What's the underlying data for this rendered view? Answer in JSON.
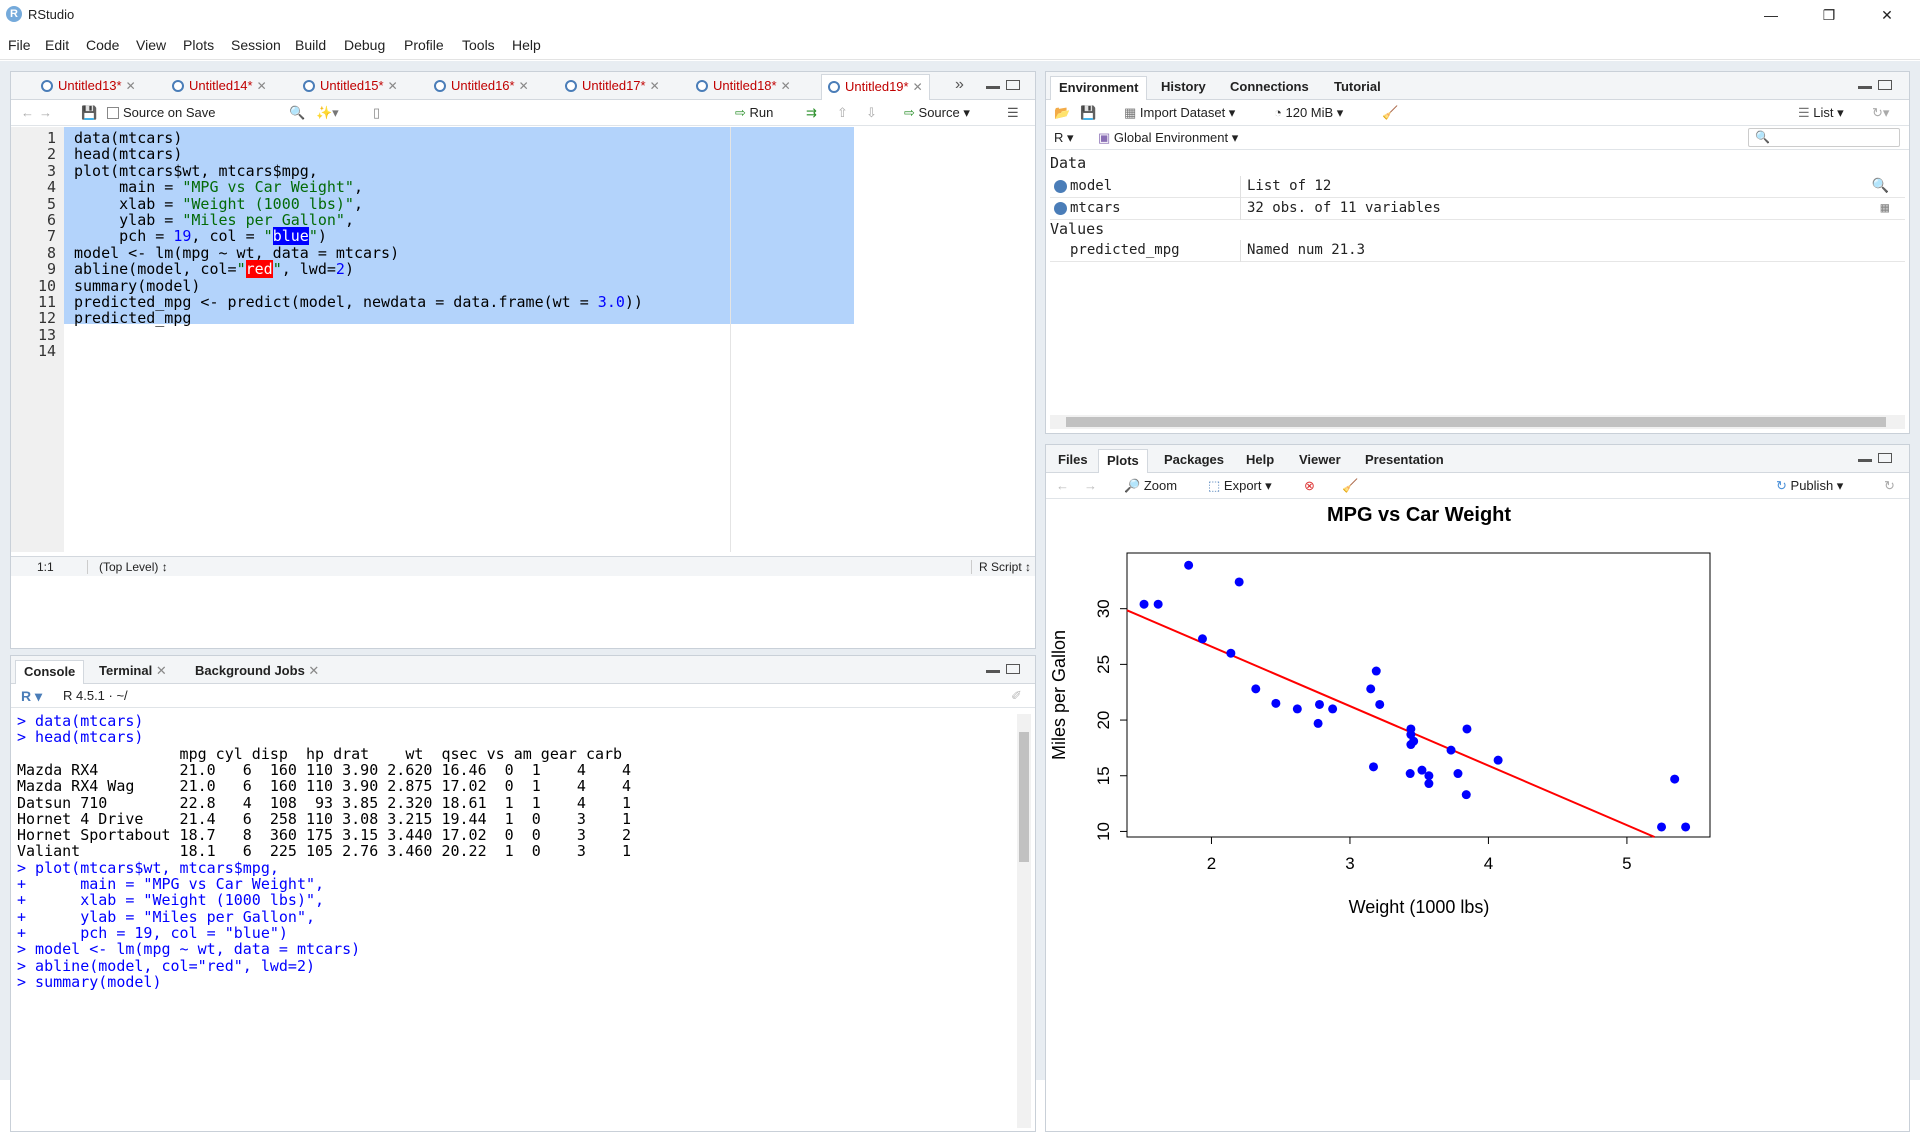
{
  "window": {
    "title": "RStudio",
    "app_icon": "R"
  },
  "menu": [
    "File",
    "Edit",
    "Code",
    "View",
    "Plots",
    "Session",
    "Build",
    "Debug",
    "Profile",
    "Tools",
    "Help"
  ],
  "editor": {
    "tabs": [
      "Untitled13*",
      "Untitled14*",
      "Untitled15*",
      "Untitled16*",
      "Untitled17*",
      "Untitled18*",
      "Untitled19*"
    ],
    "active_tab": 6,
    "toolbar": {
      "source_on_save": "Source on Save",
      "run": "Run",
      "source": "Source"
    },
    "line_numbers": [
      "1",
      "2",
      "3",
      "4",
      "5",
      "6",
      "7",
      "8",
      "9",
      "10",
      "11",
      "12",
      "13",
      "14"
    ],
    "lines": [
      "data(mtcars)",
      "head(mtcars)",
      "plot(mtcars$wt, mtcars$mpg,",
      "     main = \"MPG vs Car Weight\",",
      "     xlab = \"Weight (1000 lbs)\",",
      "     ylab = \"Miles per Gallon\",",
      "     pch = 19, col = \"blue\")",
      "model <- lm(mpg ~ wt, data = mtcars)",
      "abline(model, col=\"red\", lwd=2)",
      "summary(model)",
      "predicted_mpg <- predict(model, newdata = data.frame(wt = 3.0))",
      "predicted_mpg",
      "",
      ""
    ],
    "status": {
      "position": "1:1",
      "scope": "(Top Level)",
      "type": "R Script"
    }
  },
  "console": {
    "tabs": [
      "Console",
      "Terminal",
      "Background Jobs"
    ],
    "header": "R 4.5.1 · ~/",
    "lines": [
      "> data(mtcars)",
      "> head(mtcars)",
      "                  mpg cyl disp  hp drat    wt  qsec vs am gear carb",
      "Mazda RX4         21.0   6  160 110 3.90 2.620 16.46  0  1    4    4",
      "Mazda RX4 Wag     21.0   6  160 110 3.90 2.875 17.02  0  1    4    4",
      "Datsun 710        22.8   4  108  93 3.85 2.320 18.61  1  1    4    1",
      "Hornet 4 Drive    21.4   6  258 110 3.08 3.215 19.44  1  0    3    1",
      "Hornet Sportabout 18.7   8  360 175 3.15 3.440 17.02  0  0    3    2",
      "Valiant           18.1   6  225 105 2.76 3.460 20.22  1  0    3    1",
      "> plot(mtcars$wt, mtcars$mpg,",
      "+      main = \"MPG vs Car Weight\",",
      "+      xlab = \"Weight (1000 lbs)\",",
      "+      ylab = \"Miles per Gallon\",",
      "+      pch = 19, col = \"blue\")",
      "> model <- lm(mpg ~ wt, data = mtcars)",
      "> abline(model, col=\"red\", lwd=2)",
      "> summary(model)"
    ]
  },
  "environment": {
    "tabs": [
      "Environment",
      "History",
      "Connections",
      "Tutorial"
    ],
    "toolbar": {
      "import": "Import Dataset",
      "memory": "120 MiB",
      "view": "List",
      "lang": "R",
      "scope": "Global Environment"
    },
    "data_header": "Data",
    "values_header": "Values",
    "data_rows": [
      {
        "name": "model",
        "value": "List of  12"
      },
      {
        "name": "mtcars",
        "value": "32 obs. of 11 variables"
      }
    ],
    "value_rows": [
      {
        "name": "predicted_mpg",
        "value": "Named num 21.3"
      }
    ]
  },
  "files": {
    "tabs": [
      "Files",
      "Plots",
      "Packages",
      "Help",
      "Viewer",
      "Presentation"
    ],
    "active_tab": 1,
    "toolbar": {
      "zoom": "Zoom",
      "export": "Export",
      "publish": "Publish"
    }
  },
  "chart_data": {
    "type": "scatter",
    "title": "MPG vs Car Weight",
    "xlabel": "Weight (1000 lbs)",
    "ylabel": "Miles per Gallon",
    "xlim": [
      1.39,
      5.6
    ],
    "ylim": [
      9.5,
      35.0
    ],
    "xticks": [
      2,
      3,
      4,
      5
    ],
    "yticks": [
      10,
      15,
      20,
      25,
      30
    ],
    "point_color": "#0000ff",
    "line_color": "#ff0000",
    "regression": {
      "intercept": 37.285,
      "slope": -5.344
    },
    "x": [
      2.62,
      2.875,
      2.32,
      3.215,
      3.44,
      3.46,
      3.57,
      3.19,
      3.15,
      3.44,
      3.44,
      4.07,
      3.73,
      3.78,
      5.25,
      5.424,
      5.345,
      2.2,
      1.615,
      1.835,
      2.465,
      3.52,
      3.435,
      3.84,
      3.845,
      1.935,
      2.14,
      1.513,
      3.17,
      2.77,
      3.57,
      2.78
    ],
    "y": [
      21.0,
      21.0,
      22.8,
      21.4,
      18.7,
      18.1,
      14.3,
      24.4,
      22.8,
      19.2,
      17.8,
      16.4,
      17.3,
      15.2,
      10.4,
      10.4,
      14.7,
      32.4,
      30.4,
      33.9,
      21.5,
      15.5,
      15.2,
      13.3,
      19.2,
      27.3,
      26.0,
      30.4,
      15.8,
      19.7,
      15.0,
      21.4
    ]
  }
}
